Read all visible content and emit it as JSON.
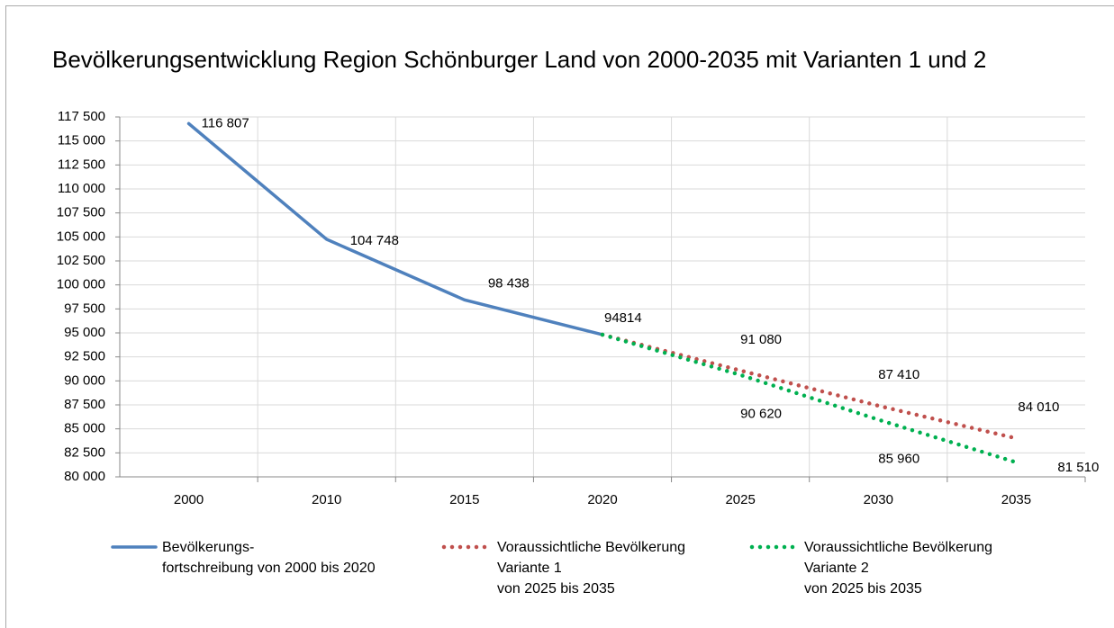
{
  "chart_data": {
    "type": "line",
    "title": "Bevölkerungsentwicklung Region Schönburger Land von 2000-2035 mit Varianten 1 und 2",
    "categories": [
      "2000",
      "2010",
      "2015",
      "2020",
      "2025",
      "2030",
      "2035"
    ],
    "series": [
      {
        "name": "Bevölkerungs-\nfortschreibung von 2000 bis 2020",
        "color": "#4f81bd",
        "style": "solid",
        "values": [
          116807,
          104748,
          98438,
          94814,
          null,
          null,
          null
        ],
        "value_labels": [
          "116 807",
          "104 748",
          "98 438",
          "94814",
          null,
          null,
          null
        ]
      },
      {
        "name": "Voraussichtliche Bevölkerung\nVariante 1\nvon 2025 bis 2035",
        "color": "#c0504d",
        "style": "dotted",
        "values": [
          null,
          null,
          null,
          94814,
          91080,
          87410,
          84010
        ],
        "value_labels": [
          null,
          null,
          null,
          null,
          "91 080",
          "87 410",
          "84 010"
        ]
      },
      {
        "name": "Voraussichtliche Bevölkerung\nVariante 2\nvon 2025 bis 2035",
        "color": "#00b050",
        "style": "dotted",
        "values": [
          null,
          null,
          null,
          94814,
          90620,
          85960,
          81510
        ],
        "value_labels": [
          null,
          null,
          null,
          null,
          "90 620",
          "85 960",
          "81 510"
        ]
      }
    ],
    "ylim": [
      80000,
      117500
    ],
    "yticks": [
      {
        "value": 80000,
        "label": "80 000"
      },
      {
        "value": 82500,
        "label": "82 500"
      },
      {
        "value": 85000,
        "label": "85 000"
      },
      {
        "value": 87500,
        "label": "87 500"
      },
      {
        "value": 90000,
        "label": "90 000"
      },
      {
        "value": 92500,
        "label": "92 500"
      },
      {
        "value": 95000,
        "label": "95 000"
      },
      {
        "value": 97500,
        "label": "97 500"
      },
      {
        "value": 100000,
        "label": "100 000"
      },
      {
        "value": 102500,
        "label": "102 500"
      },
      {
        "value": 105000,
        "label": "105 000"
      },
      {
        "value": 107500,
        "label": "107 500"
      },
      {
        "value": 110000,
        "label": "110 000"
      },
      {
        "value": 112500,
        "label": "112 500"
      },
      {
        "value": 115000,
        "label": "115 000"
      },
      {
        "value": 117500,
        "label": "117 500"
      }
    ],
    "grid": true,
    "legend": "bottom"
  }
}
